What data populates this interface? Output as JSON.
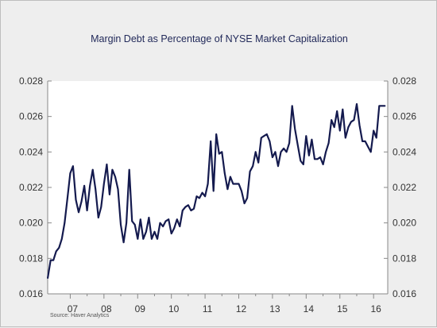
{
  "chart_data": {
    "type": "line",
    "title": "Margin Debt as Percentage of NYSE Market Capitalization",
    "source": "Source:    Haver Analytics",
    "x_tick_labels": [
      "07",
      "08",
      "09",
      "10",
      "11",
      "12",
      "13",
      "14",
      "15",
      "16"
    ],
    "x_tick_years": [
      2007,
      2008,
      2009,
      2010,
      2011,
      2012,
      2013,
      2014,
      2015,
      2016
    ],
    "xlim": [
      2006.33,
      2016.42
    ],
    "ylim": [
      0.016,
      0.028
    ],
    "y_ticks": [
      0.016,
      0.018,
      0.02,
      0.022,
      0.024,
      0.026,
      0.028
    ],
    "y_tick_labels": [
      "0.016",
      "0.018",
      "0.020",
      "0.022",
      "0.024",
      "0.026",
      "0.028"
    ],
    "right_axis_mirrors_left": true,
    "grid": false,
    "line_color": "#141a4e",
    "series": [
      {
        "x": [
          2006.333,
          2006.417,
          2006.5,
          2006.583,
          2006.667,
          2006.75,
          2006.833,
          2006.917,
          2007.0,
          2007.083,
          2007.167,
          2007.25,
          2007.333,
          2007.417,
          2007.5,
          2007.583,
          2007.667,
          2007.75,
          2007.833,
          2007.917,
          2008.0,
          2008.083,
          2008.167,
          2008.25,
          2008.333,
          2008.417,
          2008.5,
          2008.583,
          2008.667,
          2008.75,
          2008.833,
          2008.917,
          2009.0,
          2009.083,
          2009.167,
          2009.25,
          2009.333,
          2009.417,
          2009.5,
          2009.583,
          2009.667,
          2009.75,
          2009.833,
          2009.917,
          2010.0,
          2010.083,
          2010.167,
          2010.25,
          2010.333,
          2010.417,
          2010.5,
          2010.583,
          2010.667,
          2010.75,
          2010.833,
          2010.917,
          2011.0,
          2011.083,
          2011.167,
          2011.25,
          2011.333,
          2011.417,
          2011.5,
          2011.583,
          2011.667,
          2011.75,
          2011.833,
          2011.917,
          2012.0,
          2012.083,
          2012.167,
          2012.25,
          2012.333,
          2012.417,
          2012.5,
          2012.583,
          2012.667,
          2012.75,
          2012.833,
          2012.917,
          2013.0,
          2013.083,
          2013.167,
          2013.25,
          2013.333,
          2013.417,
          2013.5,
          2013.583,
          2013.667,
          2013.75,
          2013.833,
          2013.917,
          2014.0,
          2014.083,
          2014.167,
          2014.25,
          2014.333,
          2014.417,
          2014.5,
          2014.583,
          2014.667,
          2014.75,
          2014.833,
          2014.917,
          2015.0,
          2015.083,
          2015.167,
          2015.25,
          2015.333,
          2015.417,
          2015.5,
          2015.583,
          2015.667,
          2015.75,
          2015.833,
          2015.917,
          2016.0,
          2016.083,
          2016.167,
          2016.25,
          2016.333
        ],
        "y": [
          0.0169,
          0.0179,
          0.0179,
          0.0184,
          0.0186,
          0.0191,
          0.02,
          0.0214,
          0.0228,
          0.0232,
          0.0213,
          0.0206,
          0.0212,
          0.0221,
          0.0207,
          0.0221,
          0.023,
          0.0219,
          0.0203,
          0.0209,
          0.0222,
          0.0233,
          0.0216,
          0.023,
          0.0226,
          0.0219,
          0.0199,
          0.0189,
          0.02,
          0.023,
          0.0201,
          0.0199,
          0.0191,
          0.0202,
          0.0191,
          0.0195,
          0.0203,
          0.0191,
          0.0195,
          0.0191,
          0.02,
          0.0198,
          0.0201,
          0.0202,
          0.0194,
          0.0197,
          0.0202,
          0.0198,
          0.0207,
          0.0209,
          0.021,
          0.0207,
          0.0208,
          0.0215,
          0.0214,
          0.0217,
          0.0215,
          0.0222,
          0.0246,
          0.0218,
          0.025,
          0.0239,
          0.024,
          0.0228,
          0.0219,
          0.0226,
          0.0222,
          0.0222,
          0.0222,
          0.0218,
          0.0211,
          0.0214,
          0.0229,
          0.0232,
          0.024,
          0.0234,
          0.0248,
          0.0249,
          0.025,
          0.0246,
          0.0237,
          0.024,
          0.0232,
          0.024,
          0.0242,
          0.024,
          0.0245,
          0.0266,
          0.0253,
          0.0244,
          0.0235,
          0.0233,
          0.0249,
          0.0238,
          0.0247,
          0.0236,
          0.0236,
          0.0237,
          0.0233,
          0.024,
          0.0245,
          0.0258,
          0.0254,
          0.0263,
          0.0252,
          0.0264,
          0.0248,
          0.0254,
          0.0257,
          0.0258,
          0.0267,
          0.0255,
          0.0246,
          0.0246,
          0.0243,
          0.024,
          0.0252,
          0.0248,
          0.0266,
          0.0266,
          0.0266
        ]
      }
    ]
  }
}
